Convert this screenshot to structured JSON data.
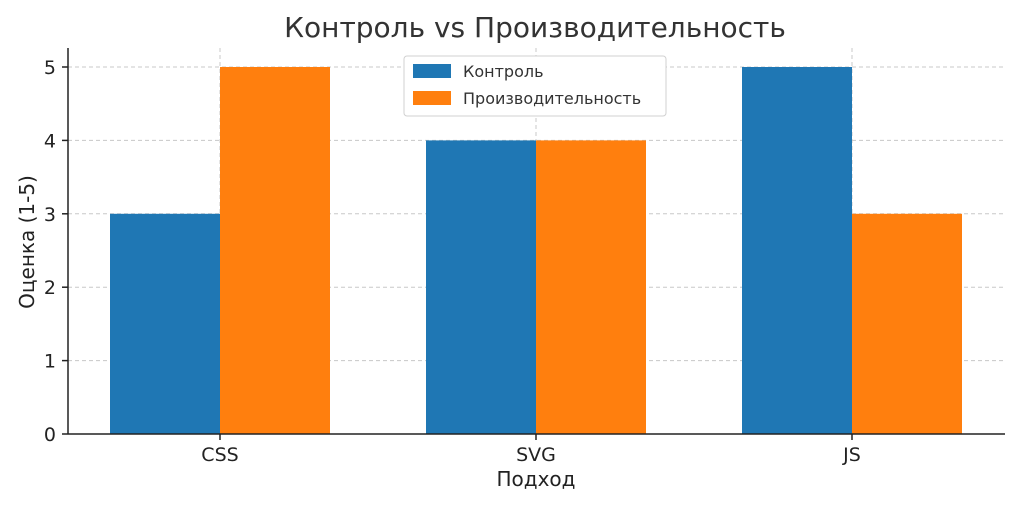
{
  "chart_data": {
    "type": "bar",
    "title": "Контроль vs Производительность",
    "xlabel": "Подход",
    "ylabel": "Оценка (1-5)",
    "categories": [
      "CSS",
      "SVG",
      "JS"
    ],
    "series": [
      {
        "name": "Контроль",
        "values": [
          3,
          4,
          5
        ],
        "color": "#1f77b4"
      },
      {
        "name": "Производительность",
        "values": [
          5,
          4,
          3
        ],
        "color": "#ff7f0e"
      }
    ],
    "ylim": [
      0,
      5
    ],
    "yticks": [
      "0",
      "1",
      "2",
      "3",
      "4",
      "5"
    ],
    "grid": true,
    "legend": "top-center"
  }
}
